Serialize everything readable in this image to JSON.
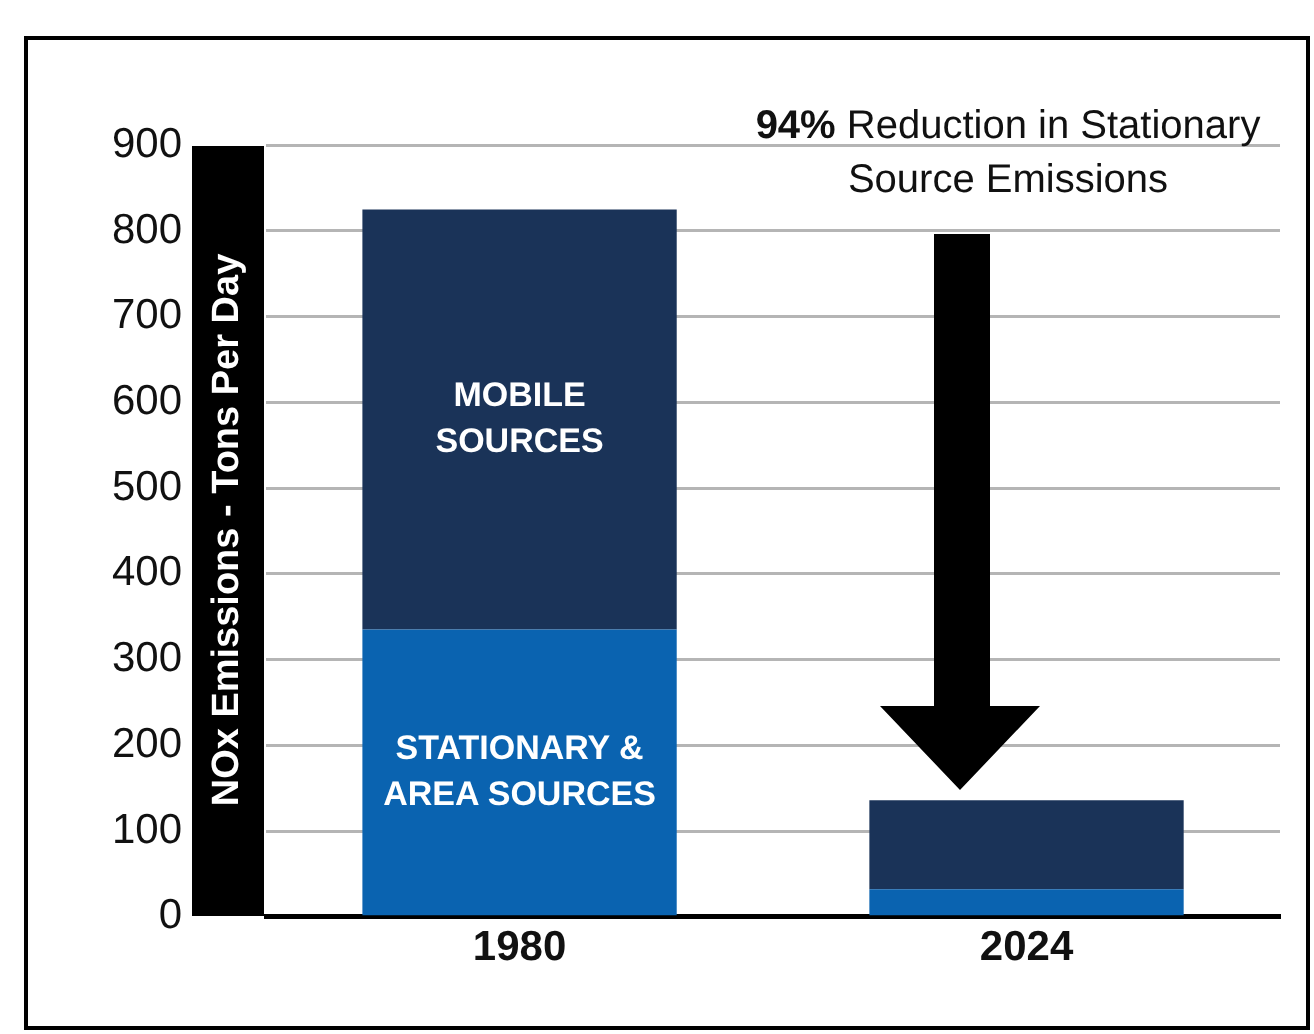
{
  "chart_data": {
    "type": "bar",
    "stacked": true,
    "ylabel": "NOx Emissions - Tons Per Day",
    "categories": [
      "1980",
      "2024"
    ],
    "series": [
      {
        "name": "STATIONARY & AREA SOURCES",
        "color": "#0a63b0",
        "values": [
          335,
          32
        ]
      },
      {
        "name": "MOBILE SOURCES",
        "color": "#1a3358",
        "values": [
          490,
          104
        ]
      }
    ],
    "ylim": [
      0,
      900
    ],
    "yticks": [
      0,
      100,
      200,
      300,
      400,
      500,
      600,
      700,
      800,
      900
    ],
    "grid": "y",
    "legend": false,
    "annotations": [
      "94% Reduction in Stationary Source Emissions"
    ]
  }
}
